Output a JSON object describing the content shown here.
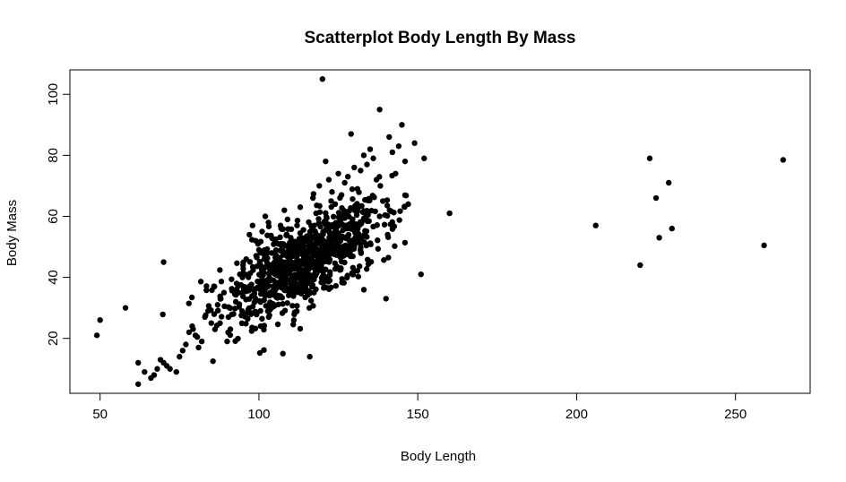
{
  "chart_data": {
    "type": "scatter",
    "title": "Scatterplot Body Length By Mass",
    "xlabel": "Body Length",
    "ylabel": "Body Mass",
    "xlim": [
      40.5,
      273.5
    ],
    "ylim": [
      2,
      108
    ],
    "x_ticks": [
      50,
      100,
      150,
      200,
      250
    ],
    "y_ticks": [
      20,
      40,
      60,
      80,
      100
    ],
    "grid": false,
    "legend": "none",
    "marker_color": "#000000",
    "series": [
      {
        "points": [
          [
            49,
            21
          ],
          [
            50,
            26
          ],
          [
            58,
            30
          ],
          [
            70,
            45
          ],
          [
            62,
            12
          ],
          [
            62,
            5
          ],
          [
            64,
            9
          ],
          [
            66,
            7
          ],
          [
            67,
            8
          ],
          [
            68,
            10
          ],
          [
            69,
            13
          ],
          [
            70,
            12
          ],
          [
            71,
            11
          ],
          [
            72,
            10
          ],
          [
            74,
            9
          ],
          [
            75,
            14
          ],
          [
            76,
            16
          ],
          [
            77,
            18
          ],
          [
            78,
            22
          ],
          [
            79,
            24
          ],
          [
            80,
            21
          ],
          [
            81,
            17
          ],
          [
            82,
            19
          ],
          [
            83,
            27
          ],
          [
            84,
            29
          ],
          [
            85,
            25
          ],
          [
            86,
            37
          ],
          [
            87,
            31
          ],
          [
            88,
            33
          ],
          [
            89,
            35
          ],
          [
            90,
            19
          ],
          [
            91,
            23
          ],
          [
            92,
            28
          ],
          [
            93,
            38
          ],
          [
            94,
            41
          ],
          [
            95,
            44
          ],
          [
            96,
            46
          ],
          [
            97,
            54
          ],
          [
            98,
            57
          ],
          [
            99,
            52
          ],
          [
            100,
            49
          ],
          [
            101,
            55
          ],
          [
            102,
            60
          ],
          [
            103,
            58
          ],
          [
            104,
            48
          ],
          [
            105,
            45
          ],
          [
            106,
            51
          ],
          [
            107,
            56
          ],
          [
            108,
            62
          ],
          [
            109,
            59
          ],
          [
            110,
            53
          ],
          [
            111,
            47
          ],
          [
            112,
            57
          ],
          [
            113,
            63
          ],
          [
            114,
            50
          ],
          [
            115,
            43
          ],
          [
            116,
            14
          ],
          [
            117,
            66
          ],
          [
            118,
            61
          ],
          [
            119,
            70
          ],
          [
            120,
            105
          ],
          [
            121,
            78
          ],
          [
            122,
            72
          ],
          [
            123,
            68
          ],
          [
            124,
            64
          ],
          [
            125,
            74
          ],
          [
            126,
            67
          ],
          [
            127,
            71
          ],
          [
            128,
            73
          ],
          [
            129,
            87
          ],
          [
            130,
            76
          ],
          [
            131,
            69
          ],
          [
            132,
            75
          ],
          [
            133,
            80
          ],
          [
            134,
            77
          ],
          [
            135,
            82
          ],
          [
            136,
            79
          ],
          [
            137,
            72
          ],
          [
            138,
            95
          ],
          [
            139,
            65
          ],
          [
            140,
            33
          ],
          [
            141,
            86
          ],
          [
            142,
            81
          ],
          [
            143,
            74
          ],
          [
            144,
            83
          ],
          [
            145,
            90
          ],
          [
            146,
            78
          ],
          [
            147,
            64
          ],
          [
            149,
            84
          ],
          [
            151,
            41
          ],
          [
            152,
            79
          ],
          [
            160,
            61
          ],
          [
            206,
            57
          ],
          [
            220,
            44
          ],
          [
            223,
            79
          ],
          [
            225,
            66
          ],
          [
            226,
            53
          ],
          [
            229,
            71
          ],
          [
            230,
            56
          ],
          [
            259,
            50.5
          ],
          [
            265,
            78.5
          ]
        ]
      }
    ],
    "cluster_points": {
      "count": 900,
      "note": "Dense central cluster of observations centered near Body Length 115, Body Mass 45, following a positive linear trend (Body Mass ≈ 0.55 × Body Length − 18) with spread ±10."
    }
  }
}
